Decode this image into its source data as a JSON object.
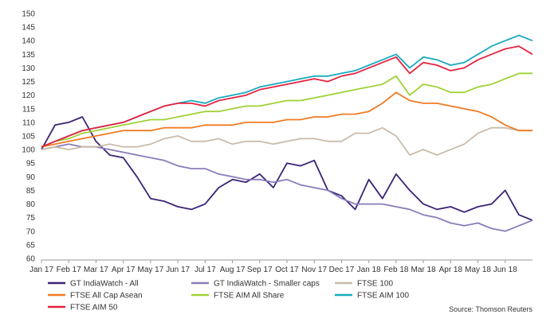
{
  "chart_data": {
    "type": "line",
    "title": "",
    "xlabel": "",
    "ylabel": "",
    "ylim": [
      60,
      150
    ],
    "yticks": [
      60,
      65,
      70,
      75,
      80,
      85,
      90,
      95,
      100,
      105,
      110,
      115,
      120,
      125,
      130,
      135,
      140,
      145,
      150
    ],
    "xlim": [
      "Jan 17",
      "Jul 18"
    ],
    "x_ticks": [
      "Jan 17",
      "Feb 17",
      "Mar 17",
      "Apr 17",
      "May 17",
      "Jun 17",
      "Jul 17",
      "Aug 17",
      "Sep 17",
      "Oct 17",
      "Nov 17",
      "Dec 17",
      "Jan 18",
      "Feb 18",
      "Mar 18",
      "Apr 18",
      "May 18",
      "Jun 18"
    ],
    "grid": false,
    "legend_position": "bottom",
    "source": "Source: Thomson Reuters",
    "series": [
      {
        "name": "GT IndiaWatch - All",
        "color": "#3b2275",
        "x": [
          "Jan 17",
          "Jan 17 mid",
          "Feb 17",
          "Feb 17 mid",
          "Mar 17",
          "Mar 17 mid",
          "Apr 17",
          "Apr 17 mid",
          "May 17",
          "May 17 mid",
          "Jun 17",
          "Jun 17 mid",
          "Jul 17",
          "Jul 17 mid",
          "Aug 17",
          "Aug 17 mid",
          "Sep 17",
          "Sep 17 mid",
          "Oct 17",
          "Oct 17 mid",
          "Nov 17",
          "Nov 17 mid",
          "Dec 17",
          "Dec 17 mid",
          "Jan 18",
          "Jan 18 mid",
          "Feb 18",
          "Feb 18 mid",
          "Mar 18",
          "Mar 18 mid",
          "Apr 18",
          "Apr 18 mid",
          "May 18",
          "May 18 mid",
          "Jun 18",
          "Jun 18 mid",
          "Jul 18"
        ],
        "values": [
          100,
          109,
          110,
          112,
          103,
          98,
          97,
          90,
          82,
          81,
          79,
          78,
          80,
          86,
          89,
          88,
          91,
          86,
          95,
          94,
          96,
          85,
          83,
          78,
          89,
          82,
          91,
          85,
          80,
          78,
          79,
          77,
          79,
          80,
          85,
          76,
          74
        ]
      },
      {
        "name": "GT IndiaWatch - Smaller caps",
        "color": "#8a7bb8",
        "x": [
          "Jan 17",
          "Jan 17 mid",
          "Feb 17",
          "Feb 17 mid",
          "Mar 17",
          "Mar 17 mid",
          "Apr 17",
          "Apr 17 mid",
          "May 17",
          "May 17 mid",
          "Jun 17",
          "Jun 17 mid",
          "Jul 17",
          "Jul 17 mid",
          "Aug 17",
          "Aug 17 mid",
          "Sep 17",
          "Sep 17 mid",
          "Oct 17",
          "Oct 17 mid",
          "Nov 17",
          "Nov 17 mid",
          "Dec 17",
          "Dec 17 mid",
          "Jan 18",
          "Jan 18 mid",
          "Feb 18",
          "Feb 18 mid",
          "Mar 18",
          "Mar 18 mid",
          "Apr 18",
          "Apr 18 mid",
          "May 18",
          "May 18 mid",
          "Jun 18",
          "Jun 18 mid",
          "Jul 18"
        ],
        "values": [
          100,
          101,
          102,
          101,
          101,
          100,
          99,
          98,
          97,
          96,
          94,
          93,
          93,
          91,
          90,
          89,
          89,
          88,
          89,
          87,
          86,
          85,
          82,
          80,
          80,
          80,
          79,
          78,
          76,
          75,
          73,
          72,
          73,
          71,
          70,
          72,
          74
        ]
      },
      {
        "name": "FTSE 100",
        "color": "#c9bcaa",
        "x": [
          "Jan 17",
          "Jan 17 mid",
          "Feb 17",
          "Feb 17 mid",
          "Mar 17",
          "Mar 17 mid",
          "Apr 17",
          "Apr 17 mid",
          "May 17",
          "May 17 mid",
          "Jun 17",
          "Jun 17 mid",
          "Jul 17",
          "Jul 17 mid",
          "Aug 17",
          "Aug 17 mid",
          "Sep 17",
          "Sep 17 mid",
          "Oct 17",
          "Oct 17 mid",
          "Nov 17",
          "Nov 17 mid",
          "Dec 17",
          "Dec 17 mid",
          "Jan 18",
          "Jan 18 mid",
          "Feb 18",
          "Feb 18 mid",
          "Mar 18",
          "Mar 18 mid",
          "Apr 18",
          "Apr 18 mid",
          "May 18",
          "May 18 mid",
          "Jun 18",
          "Jun 18 mid",
          "Jul 18"
        ],
        "values": [
          100,
          101,
          100,
          101,
          101,
          102,
          101,
          101,
          102,
          104,
          105,
          103,
          103,
          104,
          102,
          103,
          103,
          102,
          103,
          104,
          104,
          103,
          103,
          106,
          106,
          108,
          105,
          98,
          100,
          98,
          100,
          102,
          106,
          108,
          108,
          107,
          107
        ]
      },
      {
        "name": "FTSE All Cap Asean",
        "color": "#f07b22",
        "x": [
          "Jan 17",
          "Jan 17 mid",
          "Feb 17",
          "Feb 17 mid",
          "Mar 17",
          "Mar 17 mid",
          "Apr 17",
          "Apr 17 mid",
          "May 17",
          "May 17 mid",
          "Jun 17",
          "Jun 17 mid",
          "Jul 17",
          "Jul 17 mid",
          "Aug 17",
          "Aug 17 mid",
          "Sep 17",
          "Sep 17 mid",
          "Oct 17",
          "Oct 17 mid",
          "Nov 17",
          "Nov 17 mid",
          "Dec 17",
          "Dec 17 mid",
          "Jan 18",
          "Jan 18 mid",
          "Feb 18",
          "Feb 18 mid",
          "Mar 18",
          "Mar 18 mid",
          "Apr 18",
          "Apr 18 mid",
          "May 18",
          "May 18 mid",
          "Jun 18",
          "Jun 18 mid",
          "Jul 18"
        ],
        "values": [
          101,
          102,
          103,
          104,
          105,
          106,
          107,
          107,
          107,
          108,
          108,
          108,
          109,
          109,
          109,
          110,
          110,
          110,
          111,
          111,
          112,
          112,
          113,
          113,
          114,
          117,
          121,
          118,
          117,
          117,
          116,
          115,
          114,
          112,
          109,
          107,
          107
        ]
      },
      {
        "name": "FTSE AIM All Share",
        "color": "#9fd236",
        "x": [
          "Jan 17",
          "Jan 17 mid",
          "Feb 17",
          "Feb 17 mid",
          "Mar 17",
          "Mar 17 mid",
          "Apr 17",
          "Apr 17 mid",
          "May 17",
          "May 17 mid",
          "Jun 17",
          "Jun 17 mid",
          "Jul 17",
          "Jul 17 mid",
          "Aug 17",
          "Aug 17 mid",
          "Sep 17",
          "Sep 17 mid",
          "Oct 17",
          "Oct 17 mid",
          "Nov 17",
          "Nov 17 mid",
          "Dec 17",
          "Dec 17 mid",
          "Jan 18",
          "Jan 18 mid",
          "Feb 18",
          "Feb 18 mid",
          "Mar 18",
          "Mar 18 mid",
          "Apr 18",
          "Apr 18 mid",
          "May 18",
          "May 18 mid",
          "Jun 18",
          "Jun 18 mid",
          "Jul 18"
        ],
        "values": [
          101,
          103,
          104,
          106,
          107,
          108,
          109,
          110,
          111,
          111,
          112,
          113,
          114,
          114,
          115,
          116,
          116,
          117,
          118,
          118,
          119,
          120,
          121,
          122,
          123,
          124,
          127,
          120,
          124,
          123,
          121,
          121,
          123,
          124,
          126,
          128,
          128
        ]
      },
      {
        "name": "FTSE AIM 100",
        "color": "#17a9be",
        "x": [
          "Jan 17",
          "Jan 17 mid",
          "Feb 17",
          "Feb 17 mid",
          "Mar 17",
          "Mar 17 mid",
          "Apr 17",
          "Apr 17 mid",
          "May 17",
          "May 17 mid",
          "Jun 17",
          "Jun 17 mid",
          "Jul 17",
          "Jul 17 mid",
          "Aug 17",
          "Aug 17 mid",
          "Sep 17",
          "Sep 17 mid",
          "Oct 17",
          "Oct 17 mid",
          "Nov 17",
          "Nov 17 mid",
          "Dec 17",
          "Dec 17 mid",
          "Jan 18",
          "Jan 18 mid",
          "Feb 18",
          "Feb 18 mid",
          "Mar 18",
          "Mar 18 mid",
          "Apr 18",
          "Apr 18 mid",
          "May 18",
          "May 18 mid",
          "Jun 18",
          "Jun 18 mid",
          "Jul 18"
        ],
        "values": [
          101,
          103,
          105,
          107,
          108,
          109,
          110,
          112,
          114,
          116,
          117,
          118,
          117,
          119,
          120,
          121,
          123,
          124,
          125,
          126,
          127,
          127,
          128,
          129,
          131,
          133,
          135,
          130,
          134,
          133,
          131,
          132,
          135,
          138,
          140,
          142,
          140
        ]
      },
      {
        "name": "FTSE AIM 50",
        "color": "#e6223f",
        "x": [
          "Jan 17",
          "Jan 17 mid",
          "Feb 17",
          "Feb 17 mid",
          "Mar 17",
          "Mar 17 mid",
          "Apr 17",
          "Apr 17 mid",
          "May 17",
          "May 17 mid",
          "Jun 17",
          "Jun 17 mid",
          "Jul 17",
          "Jul 17 mid",
          "Aug 17",
          "Aug 17 mid",
          "Sep 17",
          "Sep 17 mid",
          "Oct 17",
          "Oct 17 mid",
          "Nov 17",
          "Nov 17 mid",
          "Dec 17",
          "Dec 17 mid",
          "Jan 18",
          "Jan 18 mid",
          "Feb 18",
          "Feb 18 mid",
          "Mar 18",
          "Mar 18 mid",
          "Apr 18",
          "Apr 18 mid",
          "May 18",
          "May 18 mid",
          "Jun 18",
          "Jun 18 mid",
          "Jul 18"
        ],
        "values": [
          101,
          103,
          105,
          107,
          108,
          109,
          110,
          112,
          114,
          116,
          117,
          117,
          116,
          118,
          119,
          120,
          122,
          123,
          124,
          125,
          126,
          125,
          127,
          128,
          130,
          132,
          134,
          128,
          132,
          131,
          129,
          130,
          133,
          135,
          137,
          138,
          135
        ]
      }
    ]
  }
}
